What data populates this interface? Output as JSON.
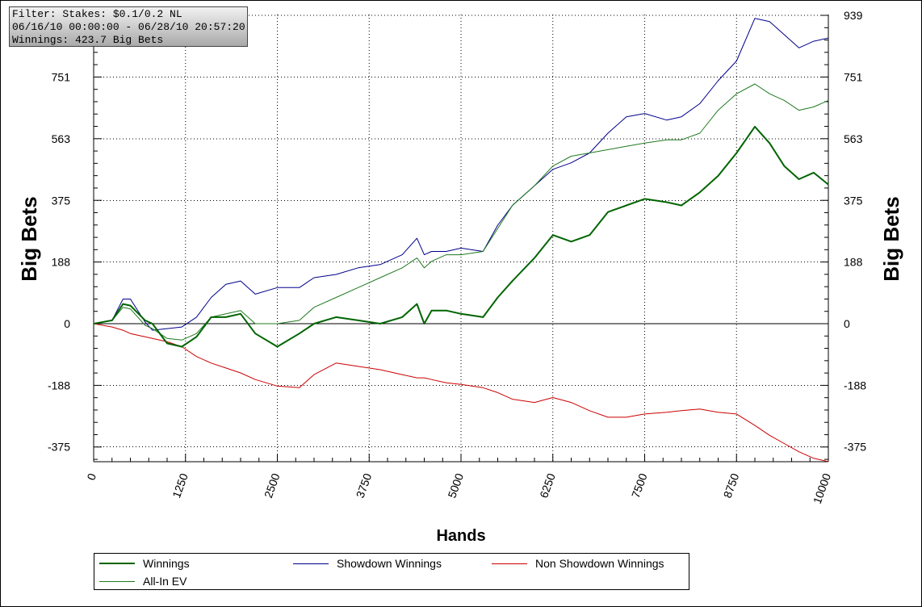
{
  "info": {
    "filter": "Filter: Stakes: $0.1/0.2 NL",
    "dates": "06/16/10 00:00:00 - 06/28/10 20:57:20",
    "winnings": "Winnings: 423.7 Big Bets"
  },
  "legend": {
    "winnings": "Winnings",
    "showdown": "Showdown Winnings",
    "non_showdown": "Non Showdown Winnings",
    "allin_ev": "All-In EV"
  },
  "colors": {
    "winnings": "#006400",
    "allin_ev": "#1f7a1f",
    "showdown": "#00008b",
    "non_showdown": "#cc0000",
    "grid": "#000000",
    "info_bg_top": "#f2f2f2",
    "info_bg_bottom": "#a9a9a9"
  },
  "chart_data": {
    "type": "line",
    "title": "",
    "xlabel": "Hands",
    "ylabel": "Big Bets",
    "xlim": [
      0,
      10000
    ],
    "ylim": [
      -420,
      939
    ],
    "x_ticks": [
      0,
      1250,
      2500,
      3750,
      5000,
      6250,
      7500,
      8750,
      10000
    ],
    "x_tick_labels": [
      "0",
      "1250",
      "2500",
      "3750",
      "5000",
      "6250",
      "7500",
      "8750",
      "10000"
    ],
    "y_ticks": [
      -375,
      -188,
      0,
      188,
      375,
      563,
      751,
      939
    ],
    "y_tick_labels_left": [
      "-375",
      "-188",
      "0",
      "188",
      "375",
      "563",
      "751"
    ],
    "y_tick_labels_right": [
      "-375",
      "-188",
      "0",
      "188",
      "375",
      "563",
      "751",
      "939"
    ],
    "grid": true,
    "legend_position": "bottom",
    "x": [
      0,
      250,
      400,
      500,
      700,
      800,
      1000,
      1200,
      1400,
      1600,
      1800,
      2000,
      2200,
      2500,
      2800,
      3000,
      3300,
      3600,
      3900,
      4200,
      4400,
      4500,
      4600,
      4800,
      5000,
      5300,
      5500,
      5700,
      6000,
      6250,
      6500,
      6750,
      7000,
      7250,
      7500,
      7800,
      8000,
      8250,
      8500,
      8750,
      9000,
      9200,
      9400,
      9600,
      9800,
      10000
    ],
    "series": [
      {
        "name": "Winnings",
        "values": [
          0,
          10,
          60,
          55,
          10,
          0,
          -60,
          -70,
          -40,
          20,
          20,
          30,
          -30,
          -70,
          -30,
          0,
          20,
          10,
          0,
          20,
          60,
          0,
          40,
          40,
          30,
          20,
          80,
          130,
          200,
          270,
          250,
          270,
          340,
          360,
          380,
          370,
          360,
          400,
          450,
          520,
          600,
          550,
          480,
          440,
          460,
          423.7
        ]
      },
      {
        "name": "Showdown Winnings",
        "values": [
          0,
          10,
          75,
          75,
          5,
          -20,
          -15,
          -10,
          20,
          80,
          120,
          130,
          90,
          110,
          110,
          140,
          150,
          170,
          180,
          210,
          260,
          210,
          220,
          220,
          230,
          220,
          300,
          360,
          420,
          470,
          490,
          520,
          580,
          630,
          640,
          620,
          630,
          670,
          740,
          800,
          930,
          920,
          880,
          840,
          860,
          870
        ]
      },
      {
        "name": "Non Showdown Winnings",
        "values": [
          0,
          -10,
          -20,
          -30,
          -40,
          -45,
          -55,
          -70,
          -100,
          -120,
          -135,
          -150,
          -170,
          -190,
          -195,
          -155,
          -120,
          -130,
          -140,
          -155,
          -165,
          -165,
          -170,
          -180,
          -185,
          -195,
          -210,
          -230,
          -240,
          -225,
          -240,
          -265,
          -285,
          -285,
          -275,
          -270,
          -265,
          -260,
          -270,
          -275,
          -310,
          -340,
          -365,
          -390,
          -410,
          -420
        ]
      },
      {
        "name": "All-In EV",
        "values": [
          0,
          10,
          50,
          45,
          -5,
          -15,
          -45,
          -50,
          -30,
          20,
          30,
          40,
          0,
          0,
          10,
          50,
          80,
          110,
          140,
          170,
          200,
          170,
          190,
          210,
          210,
          220,
          290,
          360,
          420,
          480,
          510,
          520,
          530,
          540,
          550,
          560,
          560,
          580,
          650,
          700,
          730,
          700,
          680,
          650,
          660,
          680
        ]
      }
    ]
  }
}
